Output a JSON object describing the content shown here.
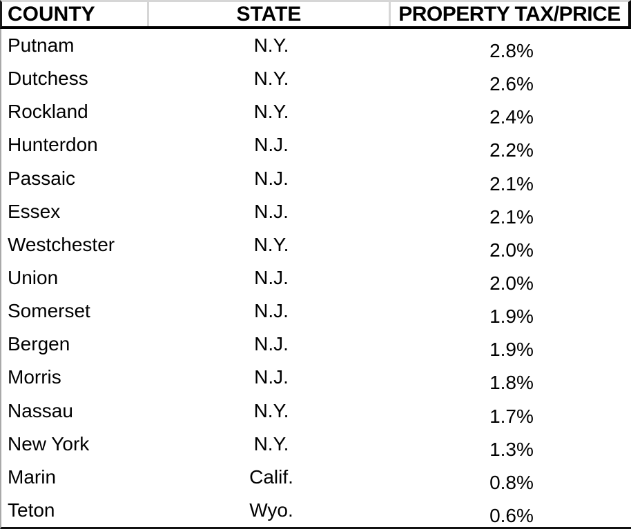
{
  "chart_data": {
    "type": "table",
    "columns": [
      "COUNTY",
      "STATE",
      "PROPERTY TAX/PRICE"
    ],
    "rows": [
      {
        "county": "Putnam",
        "state": "N.Y.",
        "property_tax_price": "2.8%"
      },
      {
        "county": "Dutchess",
        "state": "N.Y.",
        "property_tax_price": "2.6%"
      },
      {
        "county": "Rockland",
        "state": "N.Y.",
        "property_tax_price": "2.4%"
      },
      {
        "county": "Hunterdon",
        "state": "N.J.",
        "property_tax_price": "2.2%"
      },
      {
        "county": "Passaic",
        "state": "N.J.",
        "property_tax_price": "2.1%"
      },
      {
        "county": "Essex",
        "state": "N.J.",
        "property_tax_price": "2.1%"
      },
      {
        "county": "Westchester",
        "state": "N.Y.",
        "property_tax_price": "2.0%"
      },
      {
        "county": "Union",
        "state": "N.J.",
        "property_tax_price": "2.0%"
      },
      {
        "county": "Somerset",
        "state": "N.J.",
        "property_tax_price": "1.9%"
      },
      {
        "county": "Bergen",
        "state": "N.J.",
        "property_tax_price": "1.9%"
      },
      {
        "county": "Morris",
        "state": "N.J.",
        "property_tax_price": "1.8%"
      },
      {
        "county": "Nassau",
        "state": "N.Y.",
        "property_tax_price": "1.7%"
      },
      {
        "county": "New York",
        "state": "N.Y.",
        "property_tax_price": "1.3%"
      },
      {
        "county": "Marin",
        "state": "Calif.",
        "property_tax_price": "0.8%"
      },
      {
        "county": "Teton",
        "state": "Wyo.",
        "property_tax_price": "0.6%"
      }
    ],
    "property_tax_price_numeric_pct": [
      2.8,
      2.6,
      2.4,
      2.2,
      2.1,
      2.1,
      2.0,
      2.0,
      1.9,
      1.9,
      1.8,
      1.7,
      1.3,
      0.8,
      0.6
    ]
  },
  "colors": {
    "text": "#000000",
    "background": "#ffffff",
    "header_rule_dark": "#000000",
    "header_rule_light": "#d6d6d6",
    "left_edge_gray": "#a9a9a9"
  }
}
